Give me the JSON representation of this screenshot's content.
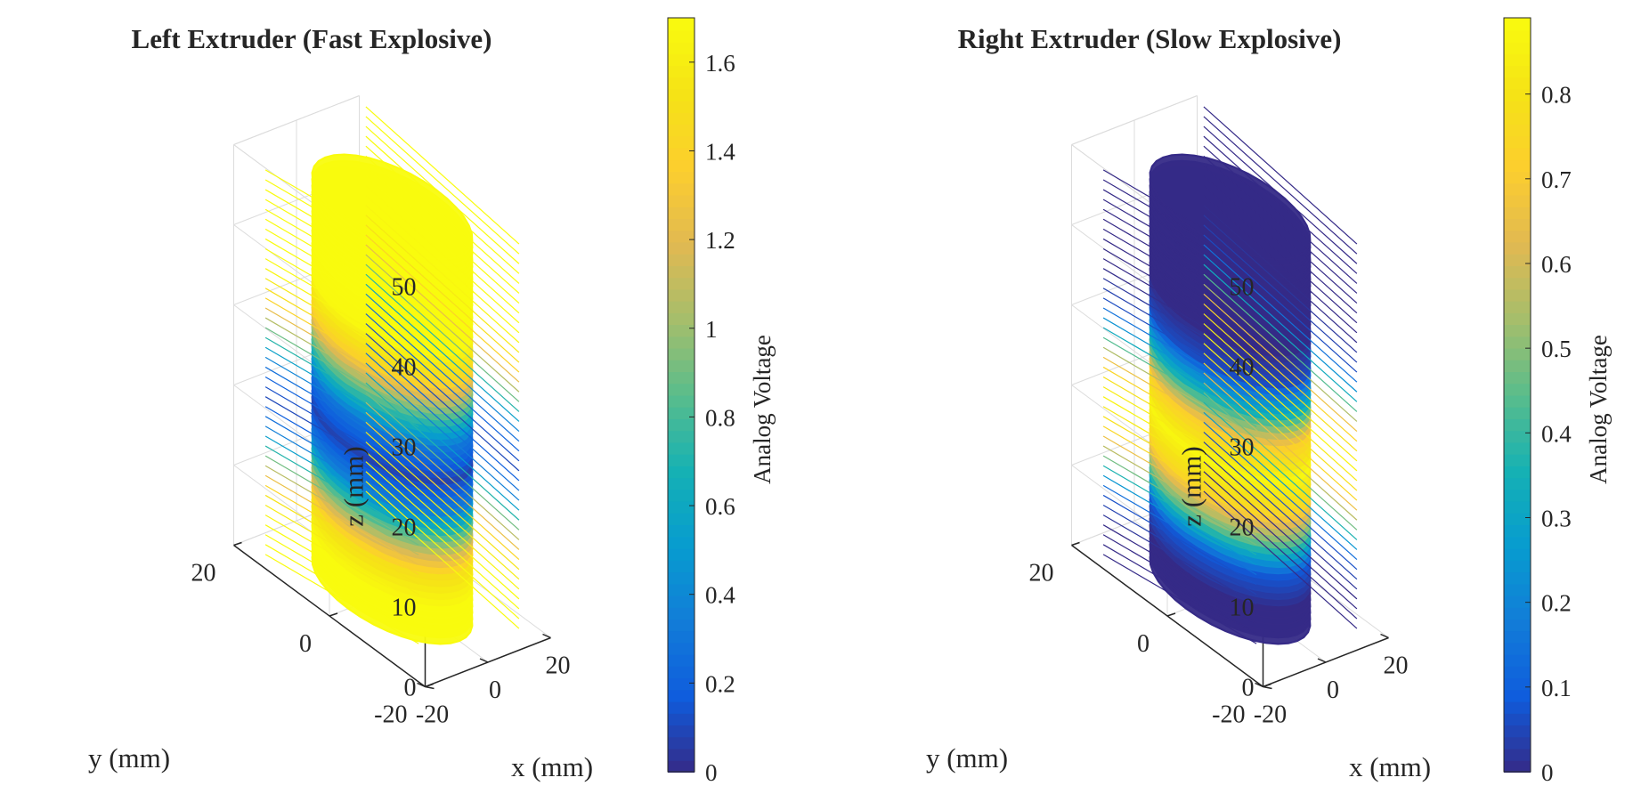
{
  "chart_data": [
    {
      "type": "surface3d",
      "title": "Left Extruder (Fast Explosive)",
      "xlabel": "x (mm)",
      "ylabel": "y (mm)",
      "zlabel": "z (mm)",
      "xlim": [
        -20,
        20
      ],
      "ylim": [
        -20,
        20
      ],
      "zlim": [
        0,
        50
      ],
      "xticks": [
        -20,
        0,
        20
      ],
      "yticks": [
        -20,
        0,
        20
      ],
      "zticks": [
        0,
        10,
        20,
        30,
        40,
        50
      ],
      "xtick_labels": [
        "-20",
        "0",
        "20"
      ],
      "ytick_labels": [
        "-20",
        "0",
        "20"
      ],
      "ztick_labels": [
        "0",
        "10",
        "20",
        "30",
        "40",
        "50"
      ],
      "colorbar": {
        "label": "Analog Voltage",
        "range": [
          0,
          1.7
        ],
        "ticks": [
          0,
          0.2,
          0.4,
          0.6,
          0.8,
          1,
          1.2,
          1.4,
          1.6
        ],
        "tick_labels": [
          "0",
          "0.2",
          "0.4",
          "0.6",
          "0.8",
          "1",
          "1.2",
          "1.4",
          "1.6"
        ],
        "colormap": "parula"
      },
      "grid": true,
      "cylinder": {
        "radius": 14,
        "height": [
          0,
          48
        ]
      },
      "voltage_profile": {
        "z": [
          0,
          4,
          8,
          12,
          16,
          20,
          24,
          28,
          32,
          36,
          40,
          44,
          48
        ],
        "value": [
          1.7,
          1.7,
          1.5,
          0.95,
          0.35,
          0.08,
          0.3,
          0.85,
          1.4,
          1.68,
          1.7,
          1.7,
          1.7
        ]
      }
    },
    {
      "type": "surface3d",
      "title": "Right Extruder (Slow Explosive)",
      "xlabel": "x (mm)",
      "ylabel": "y (mm)",
      "zlabel": "z (mm)",
      "xlim": [
        -20,
        20
      ],
      "ylim": [
        -20,
        20
      ],
      "zlim": [
        0,
        50
      ],
      "xticks": [
        -20,
        0,
        20
      ],
      "yticks": [
        -20,
        0,
        20
      ],
      "zticks": [
        0,
        10,
        20,
        30,
        40,
        50
      ],
      "xtick_labels": [
        "-20",
        "0",
        "20"
      ],
      "ytick_labels": [
        "-20",
        "0",
        "20"
      ],
      "ztick_labels": [
        "0",
        "10",
        "20",
        "30",
        "40",
        "50"
      ],
      "colorbar": {
        "label": "Analog Voltage",
        "range": [
          0,
          0.89
        ],
        "ticks": [
          0,
          0.1,
          0.2,
          0.3,
          0.4,
          0.5,
          0.6,
          0.7,
          0.8
        ],
        "tick_labels": [
          "0",
          "0.1",
          "0.2",
          "0.3",
          "0.4",
          "0.5",
          "0.6",
          "0.7",
          "0.8"
        ],
        "colormap": "parula"
      },
      "grid": true,
      "cylinder": {
        "radius": 14,
        "height": [
          0,
          48
        ]
      },
      "voltage_profile": {
        "z": [
          0,
          4,
          8,
          12,
          16,
          20,
          24,
          28,
          32,
          36,
          40,
          44,
          48
        ],
        "value": [
          0.0,
          0.0,
          0.08,
          0.45,
          0.75,
          0.87,
          0.72,
          0.35,
          0.06,
          0.0,
          0.0,
          0.0,
          0.0
        ]
      }
    }
  ]
}
